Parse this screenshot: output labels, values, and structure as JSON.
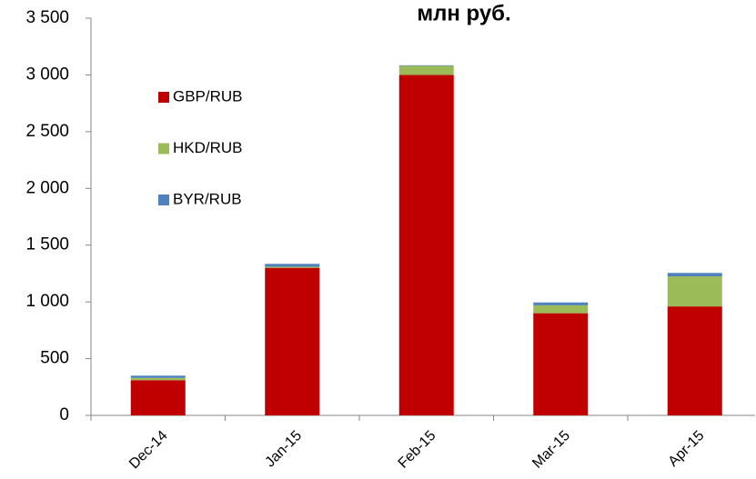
{
  "chart_data": {
    "type": "stacked_bar",
    "title": "млн руб.",
    "categories": [
      "Dec-14",
      "Jan-15",
      "Feb-15",
      "Mar-15",
      "Apr-15"
    ],
    "series": [
      {
        "name": "GBP/RUB",
        "color": "#c00000",
        "values": [
          310,
          1300,
          3000,
          900,
          960
        ]
      },
      {
        "name": "HKD/RUB",
        "color": "#9bbb59",
        "values": [
          20,
          10,
          80,
          70,
          265
        ]
      },
      {
        "name": "BYR/RUB",
        "color": "#4f81bd",
        "values": [
          20,
          25,
          5,
          25,
          30
        ]
      }
    ],
    "ylim": [
      0,
      3500
    ],
    "yticks": [
      0,
      500,
      {
        "value": 1000,
        "label": "1 000"
      },
      {
        "value": 1500,
        "label": "1 500"
      },
      {
        "value": 2000,
        "label": "2 000"
      },
      {
        "value": 2500,
        "label": "2 500"
      },
      {
        "value": 3000,
        "label": "3 000"
      },
      {
        "value": 3500,
        "label": "3 500"
      }
    ],
    "grid": false,
    "legend": "upper-left"
  }
}
